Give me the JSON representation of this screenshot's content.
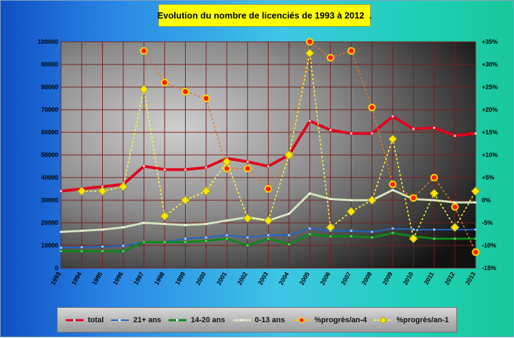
{
  "title": "Evolution du nombre de licenciés de 1993 à 2012  .",
  "colors": {
    "total": "#e0001a",
    "adults": "#1f66c9",
    "youth": "#0a8a16",
    "kids": "#d6e6c0",
    "prog4": "#ffd400",
    "prog1": "#ffff33",
    "grid": "#7a1c1c"
  },
  "chart_data": {
    "type": "line",
    "categories": [
      "1993",
      "1994",
      "1995",
      "1996",
      "1997",
      "1998",
      "1999",
      "2000",
      "2001",
      "2002",
      "2003",
      "2004",
      "2005",
      "2006",
      "2007",
      "2008",
      "2009",
      "2010",
      "2011",
      "2012",
      "2013"
    ],
    "ylim_left": [
      0,
      100000
    ],
    "ylim_right": [
      -15,
      35
    ],
    "yticks_left": [
      "0",
      "10000",
      "20000",
      "30000",
      "40000",
      "50000",
      "60000",
      "70000",
      "80000",
      "90000",
      "100000"
    ],
    "yticks_right": [
      "-15%",
      "-10%",
      "-5%",
      "0%",
      "+5%",
      "+10%",
      "+15%",
      "+20%",
      "+25%",
      "+30%",
      "+35%"
    ],
    "grid": true,
    "legend_position": "bottom",
    "series": [
      {
        "name": "total",
        "axis": "left",
        "color": "#e0001a",
        "values": [
          34000,
          35000,
          36000,
          37000,
          45000,
          43500,
          43500,
          44500,
          48500,
          47000,
          45000,
          50000,
          65000,
          61000,
          59500,
          59500,
          67000,
          61500,
          62000,
          58500,
          59500
        ]
      },
      {
        "name": "21+ ans",
        "axis": "left",
        "color": "#1f66c9",
        "values": [
          9000,
          9200,
          9500,
          9800,
          11500,
          11500,
          13000,
          13500,
          14500,
          13500,
          14500,
          14500,
          17500,
          16500,
          16500,
          16000,
          17500,
          17000,
          17000,
          17000,
          17000
        ]
      },
      {
        "name": "14-20 ans",
        "axis": "left",
        "color": "#0a8a16",
        "values": [
          7500,
          7500,
          7500,
          7500,
          11500,
          11500,
          11500,
          12000,
          13000,
          10000,
          13000,
          10500,
          15000,
          14000,
          14000,
          13500,
          15500,
          14000,
          13000,
          13000,
          13000
        ]
      },
      {
        "name": "0-13 ans",
        "axis": "left",
        "color": "#d6e6c0",
        "values": [
          16000,
          16500,
          17000,
          18000,
          20000,
          19500,
          19000,
          19500,
          21000,
          22500,
          21000,
          24000,
          33000,
          30500,
          30000,
          30000,
          34500,
          30500,
          30000,
          29000,
          29000
        ]
      },
      {
        "name": "%progrès/an-4",
        "axis": "right",
        "color": "#ffd400",
        "values": [
          null,
          null,
          null,
          null,
          33,
          26,
          24,
          22.5,
          7,
          7,
          2.5,
          10,
          35,
          31.5,
          33,
          20.5,
          3.5,
          0.5,
          5,
          -1.5,
          -11.5
        ]
      },
      {
        "name": "%progrès/an-1",
        "axis": "right",
        "color": "#ffff33",
        "values": [
          null,
          2,
          2,
          3,
          24.5,
          -3.5,
          0,
          2,
          8.5,
          -4,
          -4.5,
          10,
          32.5,
          -6,
          -2.5,
          0,
          13.5,
          -8.5,
          1.5,
          -6,
          2
        ]
      }
    ]
  },
  "legend": [
    {
      "label": "total",
      "key": "total"
    },
    {
      "label": "21+ ans",
      "key": "adults"
    },
    {
      "label": "14-20 ans",
      "key": "youth"
    },
    {
      "label": "0-13 ans",
      "key": "kids"
    },
    {
      "label": "%progrès/an-4",
      "key": "prog4"
    },
    {
      "label": "%progrès/an-1",
      "key": "prog1"
    }
  ]
}
